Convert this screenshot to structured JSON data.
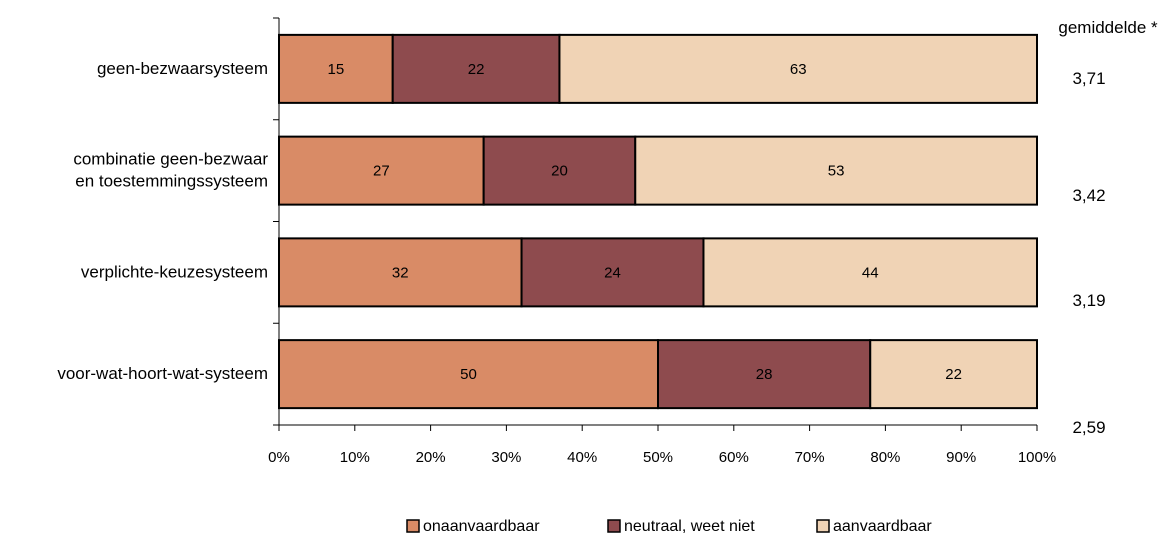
{
  "chart_data": {
    "type": "bar",
    "orientation": "horizontal",
    "stacked": true,
    "categories": [
      [
        "geen-bezwaarsysteem"
      ],
      [
        "combinatie geen-bezwaar",
        "en toestemmingssysteem"
      ],
      [
        "verplichte-keuzesysteem"
      ],
      [
        "voor-wat-hoort-wat-systeem"
      ]
    ],
    "series": [
      {
        "name": "onaanvaardbaar",
        "values": [
          15,
          27,
          32,
          50
        ],
        "color": "#D98B66"
      },
      {
        "name": "neutraal, weet niet",
        "values": [
          22,
          20,
          24,
          28
        ],
        "color": "#8E4B4E"
      },
      {
        "name": "aanvaardbaar",
        "values": [
          63,
          53,
          44,
          22
        ],
        "color": "#F0D3B5"
      }
    ],
    "xlim": [
      0,
      100
    ],
    "x_ticks": [
      "0%",
      "10%",
      "20%",
      "30%",
      "40%",
      "50%",
      "60%",
      "70%",
      "80%",
      "90%",
      "100%"
    ],
    "averages_header": "gemiddelde *",
    "averages": [
      "3,71",
      "3,42",
      "3,19",
      "2,59"
    ],
    "grid": false,
    "legend_position": "bottom"
  }
}
